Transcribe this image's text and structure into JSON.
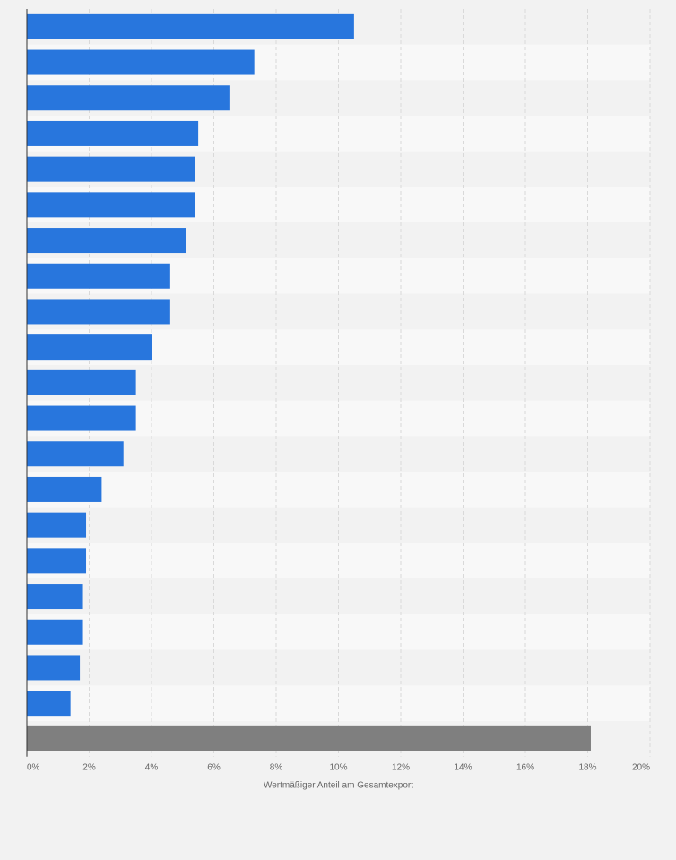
{
  "chart_data": {
    "type": "bar",
    "orientation": "horizontal",
    "title": "",
    "xlabel": "Wertmäßiger Anteil am Gesamtexport",
    "ylabel": "",
    "xlim": [
      0,
      20
    ],
    "x_ticks": [
      0,
      2,
      4,
      6,
      8,
      10,
      12,
      14,
      16,
      18,
      20
    ],
    "x_tick_labels": [
      "0%",
      "2%",
      "4%",
      "6%",
      "8%",
      "10%",
      "12%",
      "14%",
      "16%",
      "18%",
      "20%"
    ],
    "categories": [
      "",
      "",
      "",
      "",
      "",
      "",
      "",
      "",
      "",
      "",
      "",
      "",
      "",
      "",
      "",
      "",
      "",
      "",
      "",
      "",
      ""
    ],
    "values": [
      10.5,
      7.3,
      6.5,
      5.5,
      5.4,
      5.4,
      5.1,
      4.6,
      4.6,
      4.0,
      3.5,
      3.5,
      3.1,
      2.4,
      1.9,
      1.9,
      1.8,
      1.8,
      1.7,
      1.4,
      18.1
    ],
    "grid": true,
    "legend": "none"
  },
  "colors": {
    "bar": "#2876dd",
    "highlight_bar": "#7f7f7f",
    "band_dark": "#f2f2f2",
    "band_light": "#f8f8f8",
    "grid": "#d9d9d9",
    "axis": "#333333"
  }
}
